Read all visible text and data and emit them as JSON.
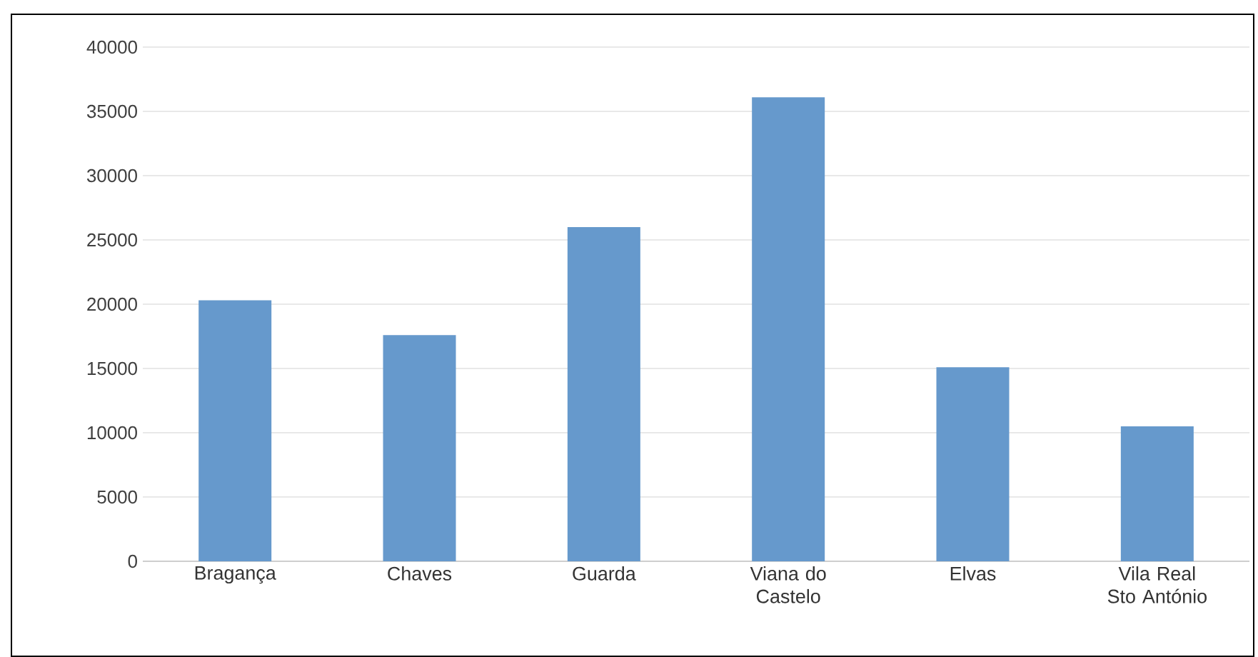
{
  "chart_data": {
    "type": "bar",
    "categories": [
      "Bragança",
      "Chaves",
      "Guarda",
      "Viana do Castelo",
      "Elvas",
      "Vila Real Sto António"
    ],
    "values": [
      20300,
      17600,
      26000,
      36100,
      15100,
      10500
    ],
    "color": "#6699cc",
    "ylim": [
      0,
      40000
    ],
    "yticks": [
      0,
      5000,
      10000,
      15000,
      20000,
      25000,
      30000,
      35000,
      40000
    ],
    "grid": "y"
  }
}
